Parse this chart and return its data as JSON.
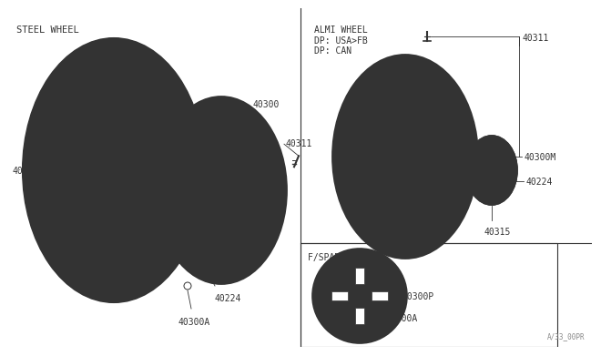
{
  "bg_color": "#ffffff",
  "line_color": "#333333",
  "text_color": "#333333",
  "labels": {
    "steel_wheel": "STEEL WHEEL",
    "almi_wheel": "ALMI WHEEL\nDP: USA>FB\nDP: CAN",
    "spare_tire": "F/SPARE TIRE",
    "part_40312": "40312",
    "part_40300": "40300",
    "part_40311_left": "40311",
    "part_40224_left": "40224",
    "part_40300A_left": "40300A",
    "part_40311_right": "40311",
    "part_40300M": "40300M",
    "part_40224_right": "40224",
    "part_40300A_right": "40300A",
    "part_40315": "40315",
    "part_40300P": "40300P",
    "watermark": "A/33_00PR"
  }
}
